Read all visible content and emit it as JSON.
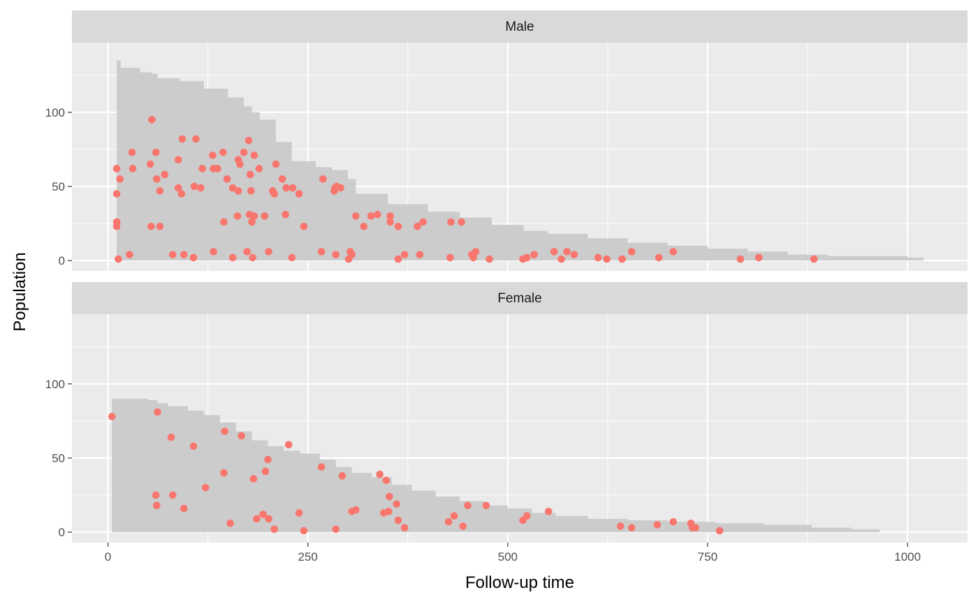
{
  "colors": {
    "panel_bg": "#EBEBEB",
    "strip_bg": "#D9D9D9",
    "grid_major": "#FFFFFF",
    "area_fill": "#CCCCCC",
    "point": "#F8766D"
  },
  "chart_data": {
    "type": "scatter",
    "xlabel": "Follow-up time",
    "ylabel": "Population",
    "xlim": [
      -45,
      1075
    ],
    "ylim": [
      -7,
      147
    ],
    "x_ticks": [
      0,
      250,
      500,
      750,
      1000
    ],
    "y_ticks": [
      0,
      50,
      100
    ],
    "grid": true,
    "panels": [
      {
        "label": "Male",
        "area": [
          [
            11,
            135
          ],
          [
            16,
            130
          ],
          [
            40,
            127
          ],
          [
            55,
            126
          ],
          [
            62,
            123
          ],
          [
            90,
            121
          ],
          [
            120,
            116
          ],
          [
            150,
            110
          ],
          [
            170,
            104
          ],
          [
            180,
            100
          ],
          [
            190,
            95
          ],
          [
            210,
            80
          ],
          [
            230,
            67
          ],
          [
            260,
            63
          ],
          [
            280,
            61
          ],
          [
            300,
            55
          ],
          [
            310,
            45
          ],
          [
            350,
            38
          ],
          [
            400,
            33
          ],
          [
            440,
            29
          ],
          [
            480,
            24
          ],
          [
            520,
            20
          ],
          [
            550,
            18
          ],
          [
            600,
            15
          ],
          [
            650,
            12
          ],
          [
            700,
            10
          ],
          [
            750,
            8
          ],
          [
            800,
            6
          ],
          [
            850,
            4
          ],
          [
            900,
            3
          ],
          [
            1000,
            2
          ],
          [
            1020,
            1
          ]
        ],
        "points": [
          [
            11,
            45
          ],
          [
            11,
            26
          ],
          [
            11,
            23
          ],
          [
            11,
            62
          ],
          [
            13,
            1
          ],
          [
            15,
            55
          ],
          [
            27,
            4
          ],
          [
            30,
            73
          ],
          [
            31,
            62
          ],
          [
            53,
            65
          ],
          [
            54,
            23
          ],
          [
            55,
            95
          ],
          [
            60,
            73
          ],
          [
            61,
            55
          ],
          [
            65,
            47
          ],
          [
            65,
            23
          ],
          [
            71,
            58
          ],
          [
            81,
            4
          ],
          [
            88,
            68
          ],
          [
            88,
            49
          ],
          [
            92,
            45
          ],
          [
            93,
            82
          ],
          [
            95,
            4
          ],
          [
            107,
            2
          ],
          [
            108,
            50
          ],
          [
            110,
            82
          ],
          [
            116,
            49
          ],
          [
            118,
            62
          ],
          [
            131,
            71
          ],
          [
            132,
            6
          ],
          [
            132,
            62
          ],
          [
            137,
            62
          ],
          [
            144,
            73
          ],
          [
            145,
            26
          ],
          [
            149,
            55
          ],
          [
            156,
            2
          ],
          [
            156,
            49
          ],
          [
            162,
            30
          ],
          [
            163,
            47
          ],
          [
            163,
            68
          ],
          [
            165,
            65
          ],
          [
            170,
            73
          ],
          [
            174,
            6
          ],
          [
            176,
            81
          ],
          [
            177,
            31
          ],
          [
            178,
            58
          ],
          [
            179,
            47
          ],
          [
            180,
            26
          ],
          [
            181,
            2
          ],
          [
            183,
            71
          ],
          [
            183,
            30
          ],
          [
            189,
            62
          ],
          [
            196,
            30
          ],
          [
            201,
            6
          ],
          [
            206,
            47
          ],
          [
            208,
            45
          ],
          [
            210,
            65
          ],
          [
            218,
            55
          ],
          [
            222,
            31
          ],
          [
            223,
            49
          ],
          [
            230,
            2
          ],
          [
            231,
            49
          ],
          [
            239,
            45
          ],
          [
            245,
            23
          ],
          [
            267,
            6
          ],
          [
            269,
            55
          ],
          [
            283,
            47
          ],
          [
            284,
            49
          ],
          [
            285,
            4
          ],
          [
            286,
            50
          ],
          [
            291,
            49
          ],
          [
            301,
            1
          ],
          [
            303,
            6
          ],
          [
            305,
            4
          ],
          [
            310,
            30
          ],
          [
            320,
            23
          ],
          [
            329,
            30
          ],
          [
            337,
            31
          ],
          [
            353,
            30
          ],
          [
            353,
            26
          ],
          [
            363,
            1
          ],
          [
            363,
            23
          ],
          [
            371,
            4
          ],
          [
            387,
            23
          ],
          [
            390,
            4
          ],
          [
            394,
            26
          ],
          [
            428,
            2
          ],
          [
            429,
            26
          ],
          [
            442,
            26
          ],
          [
            455,
            4
          ],
          [
            457,
            2
          ],
          [
            460,
            6
          ],
          [
            477,
            1
          ],
          [
            519,
            1
          ],
          [
            524,
            2
          ],
          [
            533,
            4
          ],
          [
            558,
            6
          ],
          [
            567,
            1
          ],
          [
            574,
            6
          ],
          [
            583,
            4
          ],
          [
            613,
            2
          ],
          [
            624,
            1
          ],
          [
            643,
            1
          ],
          [
            655,
            6
          ],
          [
            689,
            2
          ],
          [
            707,
            6
          ],
          [
            791,
            1
          ],
          [
            814,
            2
          ],
          [
            883,
            1
          ]
        ]
      },
      {
        "label": "Female",
        "area": [
          [
            5,
            90
          ],
          [
            50,
            89
          ],
          [
            62,
            87
          ],
          [
            75,
            85
          ],
          [
            100,
            82
          ],
          [
            120,
            79
          ],
          [
            140,
            74
          ],
          [
            160,
            68
          ],
          [
            180,
            62
          ],
          [
            200,
            58
          ],
          [
            220,
            55
          ],
          [
            240,
            53
          ],
          [
            265,
            49
          ],
          [
            285,
            44
          ],
          [
            305,
            40
          ],
          [
            330,
            37
          ],
          [
            355,
            32
          ],
          [
            380,
            28
          ],
          [
            410,
            24
          ],
          [
            440,
            21
          ],
          [
            470,
            18
          ],
          [
            500,
            16
          ],
          [
            530,
            13
          ],
          [
            560,
            11
          ],
          [
            600,
            9
          ],
          [
            650,
            8
          ],
          [
            700,
            7
          ],
          [
            760,
            6
          ],
          [
            820,
            5
          ],
          [
            880,
            3
          ],
          [
            930,
            2
          ],
          [
            965,
            1
          ]
        ],
        "points": [
          [
            5,
            78
          ],
          [
            60,
            25
          ],
          [
            61,
            18
          ],
          [
            62,
            81
          ],
          [
            79,
            64
          ],
          [
            81,
            25
          ],
          [
            95,
            16
          ],
          [
            107,
            58
          ],
          [
            122,
            30
          ],
          [
            145,
            40
          ],
          [
            146,
            68
          ],
          [
            153,
            6
          ],
          [
            167,
            65
          ],
          [
            182,
            36
          ],
          [
            186,
            9
          ],
          [
            194,
            12
          ],
          [
            197,
            41
          ],
          [
            200,
            49
          ],
          [
            201,
            9
          ],
          [
            208,
            2
          ],
          [
            226,
            59
          ],
          [
            239,
            13
          ],
          [
            245,
            1
          ],
          [
            267,
            44
          ],
          [
            285,
            2
          ],
          [
            293,
            38
          ],
          [
            305,
            14
          ],
          [
            310,
            15
          ],
          [
            340,
            39
          ],
          [
            345,
            13
          ],
          [
            348,
            35
          ],
          [
            351,
            14
          ],
          [
            352,
            24
          ],
          [
            361,
            19
          ],
          [
            363,
            8
          ],
          [
            371,
            3
          ],
          [
            426,
            7
          ],
          [
            433,
            11
          ],
          [
            444,
            4
          ],
          [
            450,
            18
          ],
          [
            473,
            18
          ],
          [
            519,
            8
          ],
          [
            524,
            11
          ],
          [
            551,
            14
          ],
          [
            641,
            4
          ],
          [
            655,
            3
          ],
          [
            687,
            5
          ],
          [
            707,
            7
          ],
          [
            729,
            6
          ],
          [
            731,
            3
          ],
          [
            735,
            3
          ],
          [
            765,
            1
          ]
        ]
      }
    ]
  }
}
